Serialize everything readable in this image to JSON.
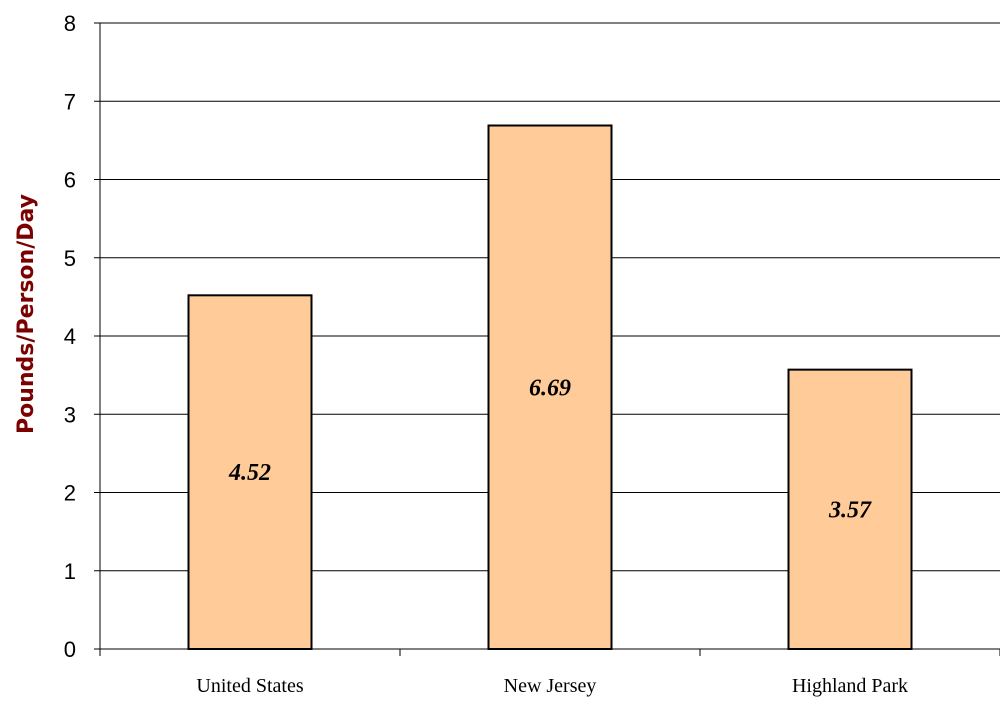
{
  "chart_data": {
    "type": "bar",
    "title": "",
    "xlabel": "",
    "ylabel": "Pounds/Person/Day",
    "ylim": [
      0,
      8
    ],
    "yticks": [
      "0",
      "1",
      "2",
      "3",
      "4",
      "5",
      "6",
      "7",
      "8"
    ],
    "grid": true,
    "legend": "none",
    "categories": [
      "United States",
      "New Jersey",
      "Highland Park"
    ],
    "values": [
      4.52,
      6.69,
      3.57
    ],
    "data_labels": [
      "4.52",
      "6.69",
      "3.57"
    ],
    "bar_color": "#ffcc99",
    "ylabel_color": "#7b0000"
  }
}
